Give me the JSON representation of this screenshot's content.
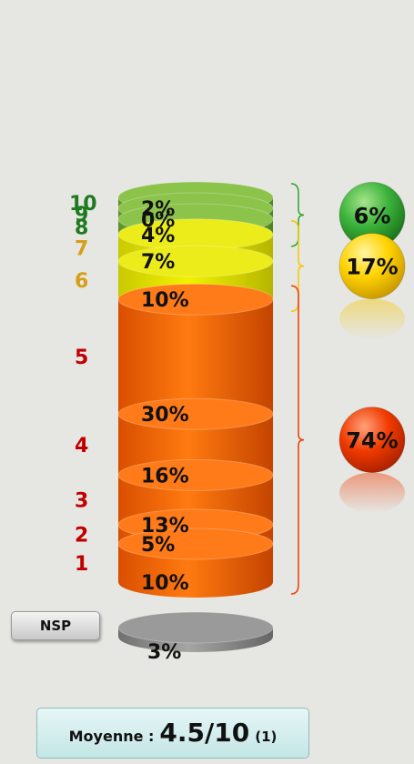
{
  "chart_data": {
    "type": "bar",
    "categories": [
      "NSP",
      "1",
      "2",
      "3",
      "4",
      "5",
      "6",
      "7",
      "8",
      "9",
      "10"
    ],
    "values": [
      3,
      10,
      5,
      13,
      16,
      30,
      10,
      7,
      4,
      0,
      2
    ],
    "value_labels": [
      "3%",
      "10%",
      "5%",
      "13%",
      "16%",
      "30%",
      "10%",
      "7%",
      "4%",
      "0%",
      "2%"
    ],
    "category_colors": {
      "NSP": "#8a8a8a",
      "low": "#ff6a00",
      "mid": "#e6e600",
      "high": "#7bb33a"
    },
    "label_colors": {
      "low": "#c00000",
      "mid": "#d4a017",
      "high": "#1e7a1e"
    },
    "groups": [
      {
        "range": [
          "8",
          "10"
        ],
        "value": 6,
        "label": "6%",
        "color": "#2ea62e"
      },
      {
        "range": [
          "6",
          "7"
        ],
        "value": 17,
        "label": "17%",
        "color": "#f5c800"
      },
      {
        "range": [
          "1",
          "5"
        ],
        "value": 74,
        "label": "74%",
        "color": "#f03a00"
      }
    ]
  },
  "nsp_button": {
    "label": "NSP"
  },
  "mean": {
    "label": "Moyenne :",
    "value": "4.5/10",
    "note": "(1)"
  }
}
